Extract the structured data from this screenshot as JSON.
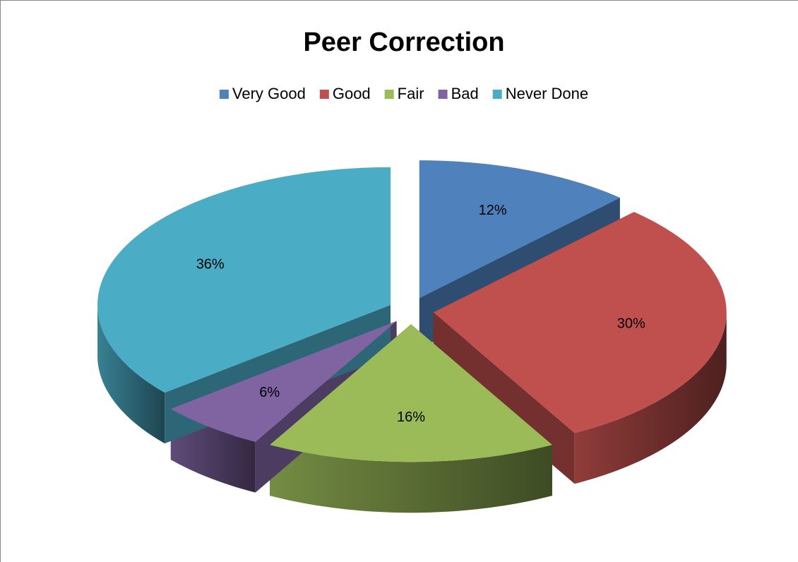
{
  "chart_data": {
    "type": "pie",
    "title": "Peer Correction",
    "categories": [
      "Very Good",
      "Good",
      "Fair",
      "Bad",
      "Never Done"
    ],
    "values": [
      12,
      30,
      16,
      6,
      36
    ],
    "value_labels": [
      "12%",
      "30%",
      "16%",
      "6%",
      "36%"
    ],
    "colors": [
      "#4f81bd",
      "#c0504d",
      "#9bbb59",
      "#8064a2",
      "#4bacc6"
    ],
    "legend": "top"
  }
}
